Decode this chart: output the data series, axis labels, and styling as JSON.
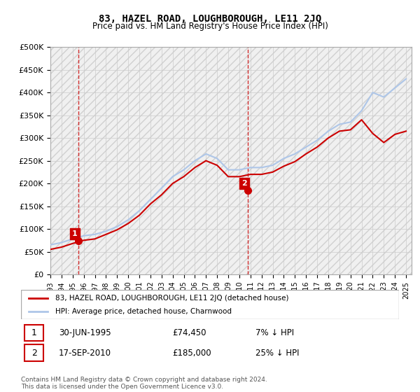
{
  "title": "83, HAZEL ROAD, LOUGHBOROUGH, LE11 2JQ",
  "subtitle": "Price paid vs. HM Land Registry's House Price Index (HPI)",
  "legend_line1": "83, HAZEL ROAD, LOUGHBOROUGH, LE11 2JQ (detached house)",
  "legend_line2": "HPI: Average price, detached house, Charnwood",
  "footnote": "Contains HM Land Registry data © Crown copyright and database right 2024.\nThis data is licensed under the Open Government Licence v3.0.",
  "transaction1_label": "1",
  "transaction1_date": "30-JUN-1995",
  "transaction1_price": "£74,450",
  "transaction1_hpi": "7% ↓ HPI",
  "transaction2_label": "2",
  "transaction2_date": "17-SEP-2010",
  "transaction2_price": "£185,000",
  "transaction2_hpi": "25% ↓ HPI",
  "hpi_color": "#aec6e8",
  "price_color": "#cc0000",
  "dashed_color": "#cc0000",
  "background_hatch_color": "#e8e8e8",
  "grid_color": "#cccccc",
  "ylim": [
    0,
    500000
  ],
  "yticks": [
    0,
    50000,
    100000,
    150000,
    200000,
    250000,
    300000,
    350000,
    400000,
    450000,
    500000
  ],
  "xlim_start": 1993,
  "xlim_end": 2025.5,
  "xticks": [
    1993,
    1994,
    1995,
    1996,
    1997,
    1998,
    1999,
    2000,
    2001,
    2002,
    2003,
    2004,
    2005,
    2006,
    2007,
    2008,
    2009,
    2010,
    2011,
    2012,
    2013,
    2014,
    2015,
    2016,
    2017,
    2018,
    2019,
    2020,
    2021,
    2022,
    2023,
    2024,
    2025
  ],
  "transaction1_x": 1995.5,
  "transaction1_y": 74450,
  "transaction2_x": 2010.75,
  "transaction2_y": 185000,
  "hpi_x": [
    1993,
    1994,
    1995,
    1996,
    1997,
    1998,
    1999,
    2000,
    2001,
    2002,
    2003,
    2004,
    2005,
    2006,
    2007,
    2008,
    2009,
    2010,
    2011,
    2012,
    2013,
    2014,
    2015,
    2016,
    2017,
    2018,
    2019,
    2020,
    2021,
    2022,
    2023,
    2024,
    2025
  ],
  "hpi_y": [
    65000,
    70000,
    78000,
    85000,
    88000,
    95000,
    105000,
    120000,
    140000,
    165000,
    190000,
    215000,
    230000,
    250000,
    265000,
    255000,
    230000,
    230000,
    235000,
    235000,
    240000,
    255000,
    265000,
    280000,
    295000,
    315000,
    330000,
    335000,
    360000,
    400000,
    390000,
    410000,
    430000
  ],
  "price_x": [
    1993,
    1994,
    1995,
    1996,
    1997,
    1998,
    1999,
    2000,
    2001,
    2002,
    2003,
    2004,
    2005,
    2006,
    2007,
    2008,
    2009,
    2010,
    2011,
    2012,
    2013,
    2014,
    2015,
    2016,
    2017,
    2018,
    2019,
    2020,
    2021,
    2022,
    2023,
    2024,
    2025
  ],
  "price_y": [
    55000,
    60000,
    68000,
    75000,
    78000,
    88000,
    98000,
    112000,
    130000,
    155000,
    175000,
    200000,
    215000,
    235000,
    250000,
    240000,
    215000,
    215000,
    220000,
    220000,
    225000,
    238000,
    248000,
    265000,
    280000,
    300000,
    315000,
    318000,
    340000,
    310000,
    290000,
    308000,
    315000
  ]
}
